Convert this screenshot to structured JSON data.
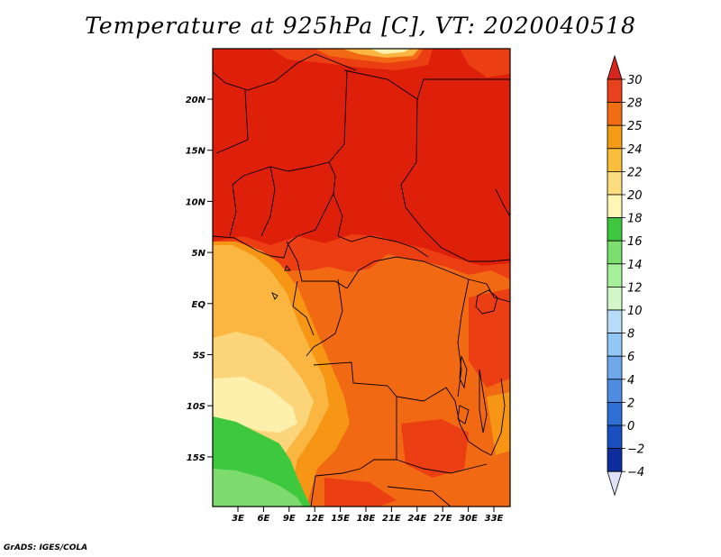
{
  "title": "Temperature at 925hPa [C], VT: 2020040518",
  "footer": "GrADS: IGES/COLA",
  "map": {
    "lat_labels": [
      "20N",
      "15N",
      "10N",
      "5N",
      "EQ",
      "5S",
      "10S",
      "15S"
    ],
    "lon_labels": [
      "3E",
      "6E",
      "9E",
      "12E",
      "15E",
      "18E",
      "21E",
      "24E",
      "27E",
      "30E",
      "33E"
    ]
  },
  "colorbar": {
    "levels": [
      "30",
      "28",
      "25",
      "24",
      "22",
      "20",
      "18",
      "16",
      "14",
      "12",
      "10",
      "8",
      "6",
      "4",
      "2",
      "0",
      "−2",
      "−4"
    ],
    "colors": [
      "#d7261e",
      "#e8421c",
      "#f06d14",
      "#f59c16",
      "#f9bf3c",
      "#fbdd7e",
      "#fdf6b4",
      "#3ec63e",
      "#7adf6e",
      "#a7ef9b",
      "#d1f7c9",
      "#b7dcf7",
      "#92c6f4",
      "#6fa9ec",
      "#4f8de1",
      "#2f6fd4",
      "#1a4fc0",
      "#0e2e9e",
      "#0a157a",
      "#e0e0f8"
    ]
  },
  "field_colors": {
    "above_28": "#de1f0a",
    "c28": "#ec3e13",
    "c25": "#f26914",
    "c24": "#f79514",
    "c22": "#fab641",
    "c20": "#fcd57a",
    "c18": "#fdf0ad",
    "c16": "#3ec83e",
    "c14": "#7ddc6d"
  }
}
